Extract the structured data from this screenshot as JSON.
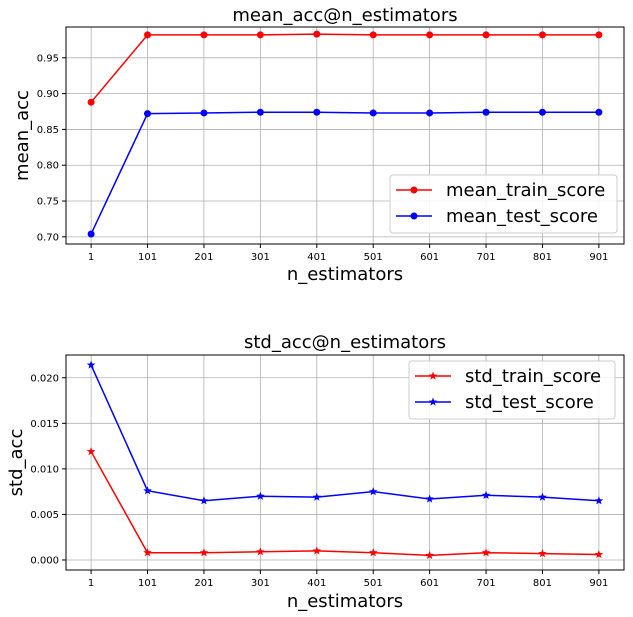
{
  "chart_data": [
    {
      "type": "line",
      "title": "mean_acc@n_estimators",
      "xlabel": "n_estimators",
      "ylabel": "mean_acc",
      "x": [
        1,
        101,
        201,
        301,
        401,
        501,
        601,
        701,
        801,
        901
      ],
      "ylim": [
        0.69,
        0.993
      ],
      "yticks": [
        "0.70",
        "0.75",
        "0.80",
        "0.85",
        "0.90",
        "0.95"
      ],
      "grid": true,
      "legend_position": "lower-right",
      "series": [
        {
          "name": "mean_train_score",
          "color": "#ff0000",
          "marker": "circle",
          "values": [
            0.888,
            0.982,
            0.982,
            0.982,
            0.983,
            0.982,
            0.982,
            0.982,
            0.982,
            0.982
          ]
        },
        {
          "name": "mean_test_score",
          "color": "#0000ff",
          "marker": "circle",
          "values": [
            0.704,
            0.872,
            0.873,
            0.874,
            0.874,
            0.873,
            0.873,
            0.874,
            0.874,
            0.874
          ]
        }
      ]
    },
    {
      "type": "line",
      "title": "std_acc@n_estimators",
      "xlabel": "n_estimators",
      "ylabel": "std_acc",
      "x": [
        1,
        101,
        201,
        301,
        401,
        501,
        601,
        701,
        801,
        901
      ],
      "ylim": [
        -0.0011,
        0.0225
      ],
      "yticks": [
        "0.000",
        "0.005",
        "0.010",
        "0.015",
        "0.020"
      ],
      "grid": true,
      "legend_position": "top-right",
      "series": [
        {
          "name": "std_train_score",
          "color": "#ff0000",
          "marker": "star",
          "values": [
            0.0119,
            0.0008,
            0.0008,
            0.0009,
            0.001,
            0.0008,
            0.0005,
            0.0008,
            0.0007,
            0.0006
          ]
        },
        {
          "name": "std_test_score",
          "color": "#0000ff",
          "marker": "star",
          "values": [
            0.0214,
            0.0076,
            0.0065,
            0.007,
            0.0069,
            0.0075,
            0.0067,
            0.0071,
            0.0069,
            0.0065
          ]
        }
      ]
    }
  ]
}
